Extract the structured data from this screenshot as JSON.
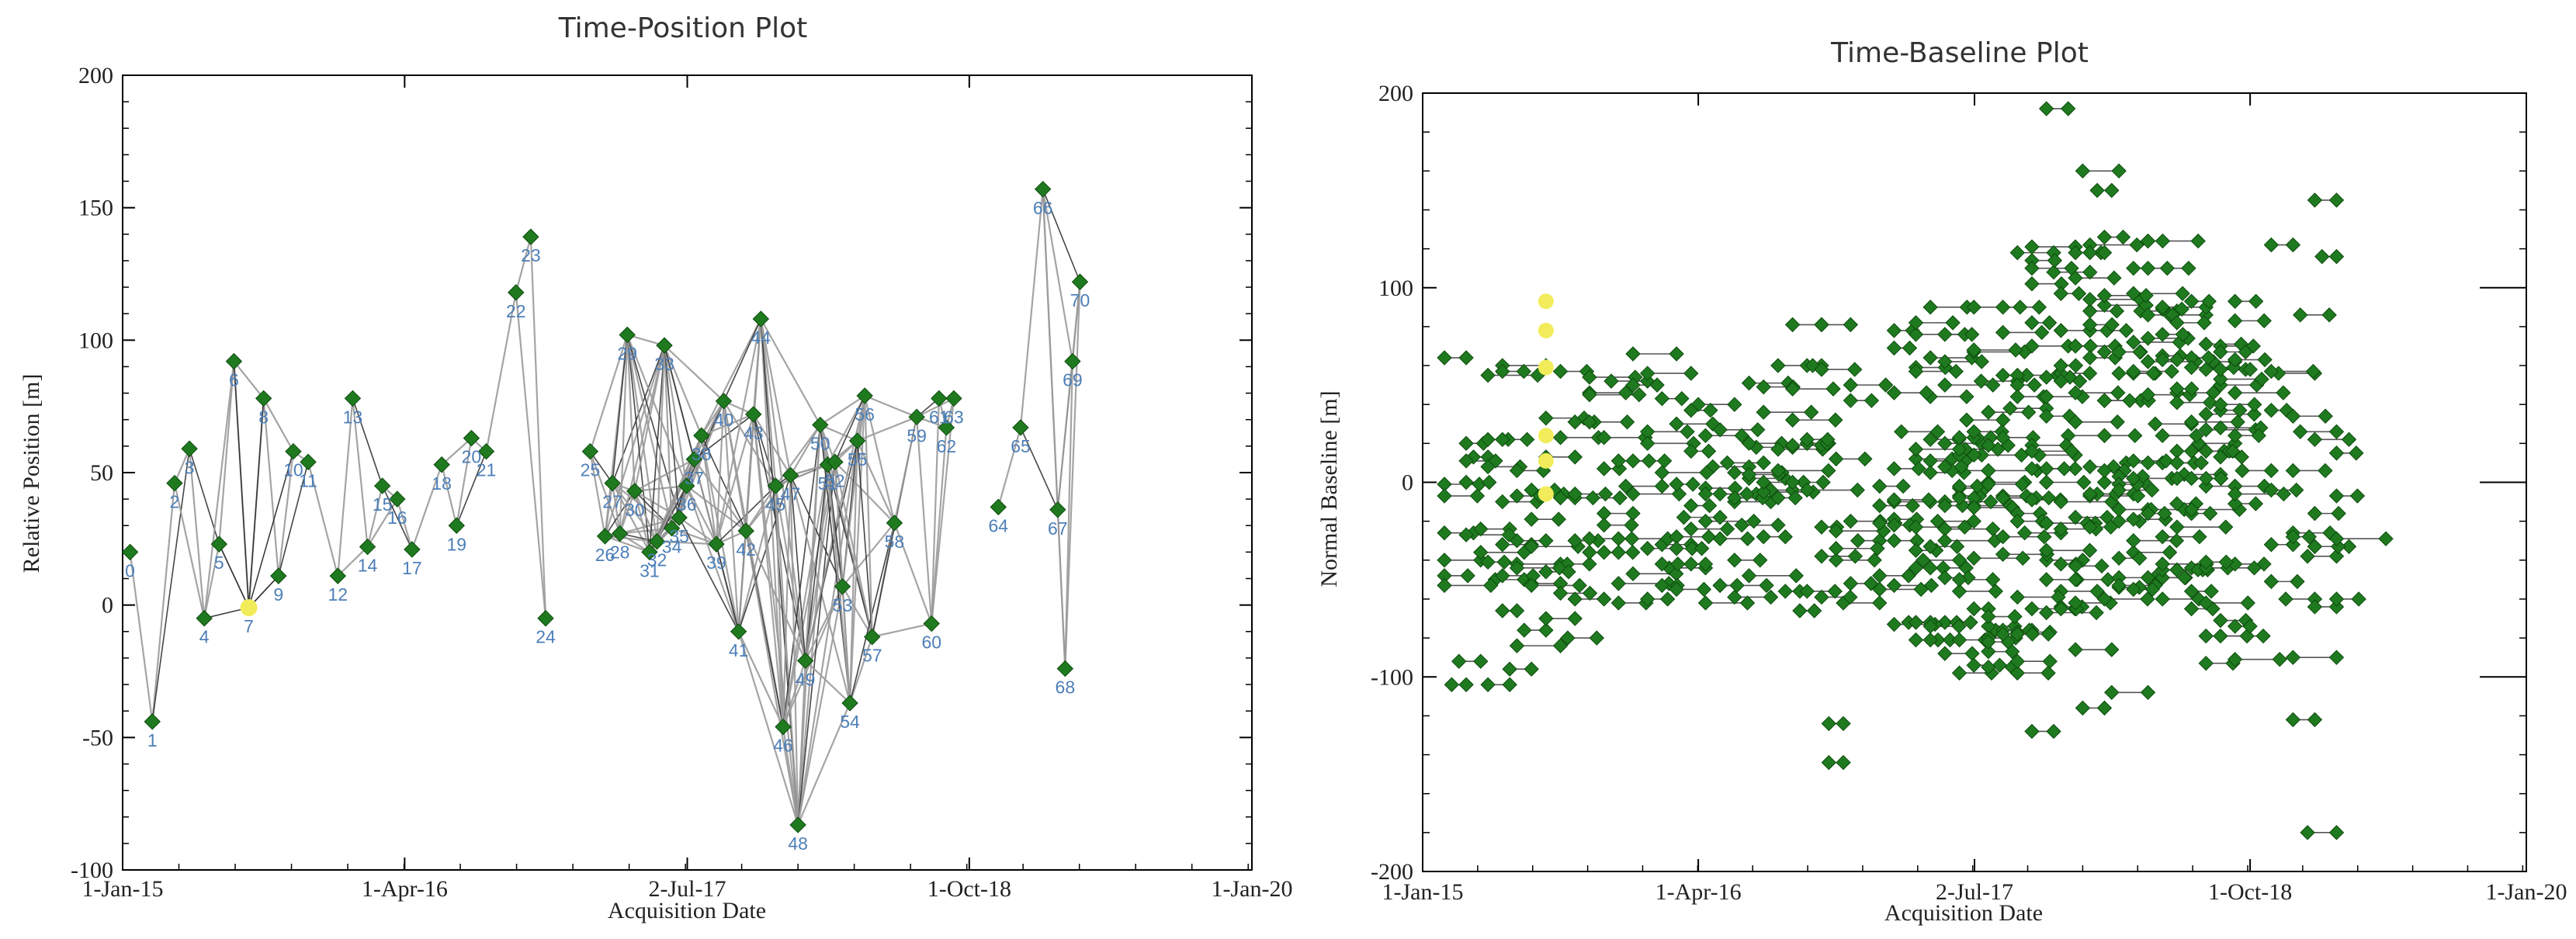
{
  "colors": {
    "green": "#1f7a1f",
    "yellow": "#f2ec5a",
    "line_gray": "#9a9a9a",
    "line_dark": "#333333",
    "label_blue": "#4d7fb8"
  },
  "chart_data": [
    {
      "type": "scatter",
      "title": "Time-Position Plot",
      "xlabel": "Acquisition Date",
      "ylabel": "Relative Position [m]",
      "x_tick_labels": [
        "1-Jan-15",
        "1-Apr-16",
        "2-Jul-17",
        "1-Oct-18",
        "1-Jan-20"
      ],
      "x_tick_values": [
        0,
        456,
        913,
        1369,
        1826
      ],
      "y_ticks": [
        200,
        150,
        100,
        50,
        0,
        -50,
        -100
      ],
      "xlim": [
        0,
        1826
      ],
      "ylim": [
        -100,
        200
      ],
      "points": [
        {
          "id": "0",
          "day": 12,
          "pos": 20
        },
        {
          "id": "1",
          "day": 48,
          "pos": -44
        },
        {
          "id": "2",
          "day": 84,
          "pos": 46
        },
        {
          "id": "3",
          "day": 108,
          "pos": 59
        },
        {
          "id": "4",
          "day": 132,
          "pos": -5
        },
        {
          "id": "5",
          "day": 156,
          "pos": 23
        },
        {
          "id": "6",
          "day": 180,
          "pos": 92
        },
        {
          "id": "7",
          "day": 204,
          "pos": -1
        },
        {
          "id": "8",
          "day": 228,
          "pos": 78
        },
        {
          "id": "9",
          "day": 252,
          "pos": 11
        },
        {
          "id": "10",
          "day": 276,
          "pos": 58
        },
        {
          "id": "11",
          "day": 300,
          "pos": 54
        },
        {
          "id": "12",
          "day": 348,
          "pos": 11
        },
        {
          "id": "13",
          "day": 372,
          "pos": 78
        },
        {
          "id": "14",
          "day": 396,
          "pos": 22
        },
        {
          "id": "15",
          "day": 420,
          "pos": 45
        },
        {
          "id": "16",
          "day": 444,
          "pos": 40
        },
        {
          "id": "17",
          "day": 468,
          "pos": 21
        },
        {
          "id": "18",
          "day": 516,
          "pos": 53
        },
        {
          "id": "19",
          "day": 540,
          "pos": 30
        },
        {
          "id": "20",
          "day": 564,
          "pos": 63
        },
        {
          "id": "21",
          "day": 588,
          "pos": 58
        },
        {
          "id": "22",
          "day": 636,
          "pos": 118
        },
        {
          "id": "23",
          "day": 660,
          "pos": 139
        },
        {
          "id": "24",
          "day": 684,
          "pos": -5
        },
        {
          "id": "25",
          "day": 756,
          "pos": 58
        },
        {
          "id": "26",
          "day": 780,
          "pos": 26
        },
        {
          "id": "27",
          "day": 792,
          "pos": 46
        },
        {
          "id": "28",
          "day": 804,
          "pos": 27
        },
        {
          "id": "29",
          "day": 816,
          "pos": 102
        },
        {
          "id": "30",
          "day": 828,
          "pos": 43
        },
        {
          "id": "31",
          "day": 852,
          "pos": 20
        },
        {
          "id": "32",
          "day": 864,
          "pos": 24
        },
        {
          "id": "33",
          "day": 876,
          "pos": 98
        },
        {
          "id": "34",
          "day": 888,
          "pos": 29
        },
        {
          "id": "35",
          "day": 900,
          "pos": 33
        },
        {
          "id": "36",
          "day": 912,
          "pos": 45
        },
        {
          "id": "37",
          "day": 924,
          "pos": 55
        },
        {
          "id": "38",
          "day": 936,
          "pos": 64
        },
        {
          "id": "39",
          "day": 960,
          "pos": 23
        },
        {
          "id": "40",
          "day": 972,
          "pos": 77
        },
        {
          "id": "41",
          "day": 996,
          "pos": -10
        },
        {
          "id": "42",
          "day": 1008,
          "pos": 28
        },
        {
          "id": "43",
          "day": 1020,
          "pos": 72
        },
        {
          "id": "44",
          "day": 1032,
          "pos": 108
        },
        {
          "id": "45",
          "day": 1056,
          "pos": 45
        },
        {
          "id": "46",
          "day": 1068,
          "pos": -46
        },
        {
          "id": "47",
          "day": 1080,
          "pos": 49
        },
        {
          "id": "48",
          "day": 1092,
          "pos": -83
        },
        {
          "id": "49",
          "day": 1104,
          "pos": -21
        },
        {
          "id": "50",
          "day": 1128,
          "pos": 68
        },
        {
          "id": "51",
          "day": 1140,
          "pos": 53
        },
        {
          "id": "52",
          "day": 1152,
          "pos": 54
        },
        {
          "id": "53",
          "day": 1164,
          "pos": 7
        },
        {
          "id": "54",
          "day": 1176,
          "pos": -37
        },
        {
          "id": "55",
          "day": 1188,
          "pos": 62
        },
        {
          "id": "56",
          "day": 1200,
          "pos": 79
        },
        {
          "id": "57",
          "day": 1212,
          "pos": -12
        },
        {
          "id": "58",
          "day": 1248,
          "pos": 31
        },
        {
          "id": "59",
          "day": 1284,
          "pos": 71
        },
        {
          "id": "60",
          "day": 1308,
          "pos": -7
        },
        {
          "id": "61",
          "day": 1320,
          "pos": 78
        },
        {
          "id": "62",
          "day": 1332,
          "pos": 67
        },
        {
          "id": "63",
          "day": 1344,
          "pos": 78
        },
        {
          "id": "64",
          "day": 1416,
          "pos": 37
        },
        {
          "id": "65",
          "day": 1452,
          "pos": 67
        },
        {
          "id": "66",
          "day": 1488,
          "pos": 157
        },
        {
          "id": "67",
          "day": 1512,
          "pos": 36
        },
        {
          "id": "68",
          "day": 1524,
          "pos": -24
        },
        {
          "id": "69",
          "day": 1536,
          "pos": 92
        },
        {
          "id": "70",
          "day": 1548,
          "pos": 122
        }
      ],
      "reference_point": "7"
    },
    {
      "type": "scatter",
      "title": "Time-Baseline Plot",
      "xlabel": "Acquisition Date",
      "ylabel": "Normal Baseline [m]",
      "x_tick_labels": [
        "1-Jan-15",
        "1-Apr-16",
        "2-Jul-17",
        "1-Oct-18",
        "1-Jan-20"
      ],
      "x_tick_values": [
        0,
        456,
        913,
        1369,
        1826
      ],
      "y_ticks": [
        200,
        100,
        0,
        -100,
        -200
      ],
      "xlim": [
        0,
        1826
      ],
      "ylim": [
        -200,
        200
      ],
      "acquisition_days": [
        36,
        72,
        108,
        132,
        156,
        180,
        204,
        228,
        252,
        276,
        300,
        324,
        348,
        372,
        396,
        420,
        444,
        468,
        492,
        516,
        540,
        564,
        588,
        612,
        636,
        660,
        684,
        708,
        756,
        780,
        816,
        840,
        864,
        888,
        912,
        936,
        960,
        984,
        1008,
        1032,
        1056,
        1080,
        1104,
        1128,
        1152,
        1176,
        1200,
        1224,
        1248,
        1272,
        1296,
        1320,
        1344,
        1404,
        1440,
        1476,
        1512
      ],
      "highlight_day": 204,
      "highlight_baselines": [
        93,
        78,
        59,
        24,
        11,
        -6
      ],
      "master_baselines": [
        10,
        -2,
        4,
        8,
        -6,
        14,
        22,
        30,
        12,
        -14,
        40,
        -30,
        18,
        2,
        -10
      ],
      "pairs": [
        {
          "d1": 36,
          "d2": 72,
          "b": 64
        },
        {
          "d1": 36,
          "d2": 84,
          "b": -26
        },
        {
          "d1": 36,
          "d2": 96,
          "b": -40
        },
        {
          "d1": 48,
          "d2": 72,
          "b": -104
        },
        {
          "d1": 60,
          "d2": 96,
          "b": -92
        },
        {
          "d1": 84,
          "d2": 108,
          "b": 13
        },
        {
          "d1": 96,
          "d2": 144,
          "b": -24
        },
        {
          "d1": 96,
          "d2": 168,
          "b": -36
        },
        {
          "d1": 108,
          "d2": 144,
          "b": -104
        },
        {
          "d1": 120,
          "d2": 168,
          "b": -50
        },
        {
          "d1": 132,
          "d2": 156,
          "b": -66
        },
        {
          "d1": 144,
          "d2": 180,
          "b": -96
        },
        {
          "d1": 156,
          "d2": 204,
          "b": -30
        },
        {
          "d1": 156,
          "d2": 228,
          "b": -84
        },
        {
          "d1": 168,
          "d2": 204,
          "b": -76
        },
        {
          "d1": 132,
          "d2": 180,
          "b": -32
        },
        {
          "d1": 132,
          "d2": 204,
          "b": 60
        },
        {
          "d1": 180,
          "d2": 228,
          "b": -52
        },
        {
          "d1": 204,
          "d2": 252,
          "b": -70
        },
        {
          "d1": 228,
          "d2": 276,
          "b": -42
        },
        {
          "d1": 240,
          "d2": 288,
          "b": -80
        },
        {
          "d1": 252,
          "d2": 300,
          "b": -60
        },
        {
          "d1": 276,
          "d2": 324,
          "b": -36
        },
        {
          "d1": 300,
          "d2": 348,
          "b": -16
        },
        {
          "d1": 276,
          "d2": 336,
          "b": 46
        },
        {
          "d1": 312,
          "d2": 372,
          "b": 52
        },
        {
          "d1": 336,
          "d2": 396,
          "b": -2
        },
        {
          "d1": 348,
          "d2": 420,
          "b": 66
        },
        {
          "d1": 372,
          "d2": 444,
          "b": 56
        },
        {
          "d1": 396,
          "d2": 444,
          "b": -32
        },
        {
          "d1": 408,
          "d2": 468,
          "b": -44
        },
        {
          "d1": 420,
          "d2": 480,
          "b": 30
        },
        {
          "d1": 432,
          "d2": 492,
          "b": -18
        },
        {
          "d1": 444,
          "d2": 504,
          "b": -24
        },
        {
          "d1": 456,
          "d2": 516,
          "b": 40
        },
        {
          "d1": 468,
          "d2": 528,
          "b": 24
        },
        {
          "d1": 480,
          "d2": 540,
          "b": 8
        },
        {
          "d1": 492,
          "d2": 552,
          "b": -6
        },
        {
          "d1": 504,
          "d2": 564,
          "b": 10
        },
        {
          "d1": 516,
          "d2": 576,
          "b": -10
        },
        {
          "d1": 528,
          "d2": 588,
          "b": -22
        },
        {
          "d1": 540,
          "d2": 600,
          "b": 2
        },
        {
          "d1": 552,
          "d2": 612,
          "b": 18
        },
        {
          "d1": 564,
          "d2": 600,
          "b": -28
        },
        {
          "d1": 576,
          "d2": 612,
          "b": -4
        },
        {
          "d1": 612,
          "d2": 660,
          "b": 81
        },
        {
          "d1": 660,
          "d2": 708,
          "b": 81
        },
        {
          "d1": 636,
          "d2": 660,
          "b": 60
        },
        {
          "d1": 600,
          "d2": 624,
          "b": -56
        },
        {
          "d1": 624,
          "d2": 648,
          "b": -66
        },
        {
          "d1": 636,
          "d2": 672,
          "b": 20
        },
        {
          "d1": 672,
          "d2": 696,
          "b": -124
        },
        {
          "d1": 672,
          "d2": 696,
          "b": -144
        },
        {
          "d1": 696,
          "d2": 756,
          "b": -62
        },
        {
          "d1": 720,
          "d2": 756,
          "b": -30
        },
        {
          "d1": 756,
          "d2": 804,
          "b": -48
        },
        {
          "d1": 780,
          "d2": 840,
          "b": -10
        },
        {
          "d1": 792,
          "d2": 852,
          "b": 26
        },
        {
          "d1": 804,
          "d2": 864,
          "b": -72
        },
        {
          "d1": 816,
          "d2": 876,
          "b": 12
        },
        {
          "d1": 828,
          "d2": 888,
          "b": -40
        },
        {
          "d1": 840,
          "d2": 900,
          "b": 44
        },
        {
          "d1": 852,
          "d2": 912,
          "b": -20
        },
        {
          "d1": 864,
          "d2": 924,
          "b": 20
        },
        {
          "d1": 876,
          "d2": 936,
          "b": 6
        },
        {
          "d1": 888,
          "d2": 948,
          "b": -56
        },
        {
          "d1": 900,
          "d2": 960,
          "b": 32
        },
        {
          "d1": 912,
          "d2": 972,
          "b": -12
        },
        {
          "d1": 924,
          "d2": 984,
          "b": 52
        },
        {
          "d1": 936,
          "d2": 996,
          "b": 0
        },
        {
          "d1": 948,
          "d2": 1008,
          "b": -76
        },
        {
          "d1": 960,
          "d2": 1020,
          "b": 90
        },
        {
          "d1": 972,
          "d2": 1032,
          "b": 38
        },
        {
          "d1": 984,
          "d2": 1044,
          "b": 118
        },
        {
          "d1": 996,
          "d2": 1056,
          "b": -26
        },
        {
          "d1": 1008,
          "d2": 1068,
          "b": 70
        },
        {
          "d1": 1020,
          "d2": 1080,
          "b": 14
        },
        {
          "d1": 1032,
          "d2": 1092,
          "b": -40
        },
        {
          "d1": 1044,
          "d2": 1104,
          "b": 108
        },
        {
          "d1": 1056,
          "d2": 1116,
          "b": -56
        },
        {
          "d1": 1068,
          "d2": 1128,
          "b": 24
        },
        {
          "d1": 1080,
          "d2": 1140,
          "b": -86
        },
        {
          "d1": 1092,
          "d2": 1152,
          "b": 160
        },
        {
          "d1": 1104,
          "d2": 1164,
          "b": 78
        },
        {
          "d1": 1116,
          "d2": 1176,
          "b": -6
        },
        {
          "d1": 1128,
          "d2": 1188,
          "b": 42
        },
        {
          "d1": 1140,
          "d2": 1200,
          "b": -108
        },
        {
          "d1": 1152,
          "d2": 1212,
          "b": 56
        },
        {
          "d1": 1164,
          "d2": 1224,
          "b": 10
        },
        {
          "d1": 1176,
          "d2": 1236,
          "b": -36
        },
        {
          "d1": 1188,
          "d2": 1248,
          "b": 88
        },
        {
          "d1": 1200,
          "d2": 1260,
          "b": -14
        },
        {
          "d1": 1212,
          "d2": 1272,
          "b": 30
        },
        {
          "d1": 1224,
          "d2": 1284,
          "b": -60
        },
        {
          "d1": 1236,
          "d2": 1296,
          "b": 86
        },
        {
          "d1": 1248,
          "d2": 1308,
          "b": 46
        },
        {
          "d1": 1260,
          "d2": 1320,
          "b": 4
        },
        {
          "d1": 1272,
          "d2": 1332,
          "b": -44
        },
        {
          "d1": 1284,
          "d2": 1344,
          "b": 20
        },
        {
          "d1": 1296,
          "d2": 1344,
          "b": -2
        },
        {
          "d1": 1308,
          "d2": 1344,
          "b": 62
        },
        {
          "d1": 1404,
          "d2": 1440,
          "b": 122
        },
        {
          "d1": 1404,
          "d2": 1440,
          "b": -32
        },
        {
          "d1": 1416,
          "d2": 1476,
          "b": 56
        },
        {
          "d1": 1428,
          "d2": 1476,
          "b": -60
        },
        {
          "d1": 1440,
          "d2": 1512,
          "b": -90
        },
        {
          "d1": 1452,
          "d2": 1512,
          "b": 26
        },
        {
          "d1": 1464,
          "d2": 1512,
          "b": -180
        },
        {
          "d1": 1476,
          "d2": 1512,
          "b": 145
        },
        {
          "d1": 1440,
          "d2": 1476,
          "b": -122
        },
        {
          "d1": 1452,
          "d2": 1500,
          "b": 86
        },
        {
          "d1": 1464,
          "d2": 1512,
          "b": -38
        },
        {
          "d1": 1488,
          "d2": 1512,
          "b": 116
        },
        {
          "d1": 1476,
          "d2": 1512,
          "b": -64
        },
        {
          "d1": 1320,
          "d2": 1380,
          "b": 50
        },
        {
          "d1": 1344,
          "d2": 1392,
          "b": -42
        },
        {
          "d1": 1356,
          "d2": 1404,
          "b": 6
        }
      ],
      "tall_pair_spikes": [
        {
          "d1": 1032,
          "d2": 1068,
          "b": 192
        },
        {
          "d1": 1008,
          "d2": 1044,
          "b": -128
        },
        {
          "d1": 1092,
          "d2": 1128,
          "b": -116
        },
        {
          "d1": 1116,
          "d2": 1140,
          "b": 150
        }
      ]
    }
  ]
}
